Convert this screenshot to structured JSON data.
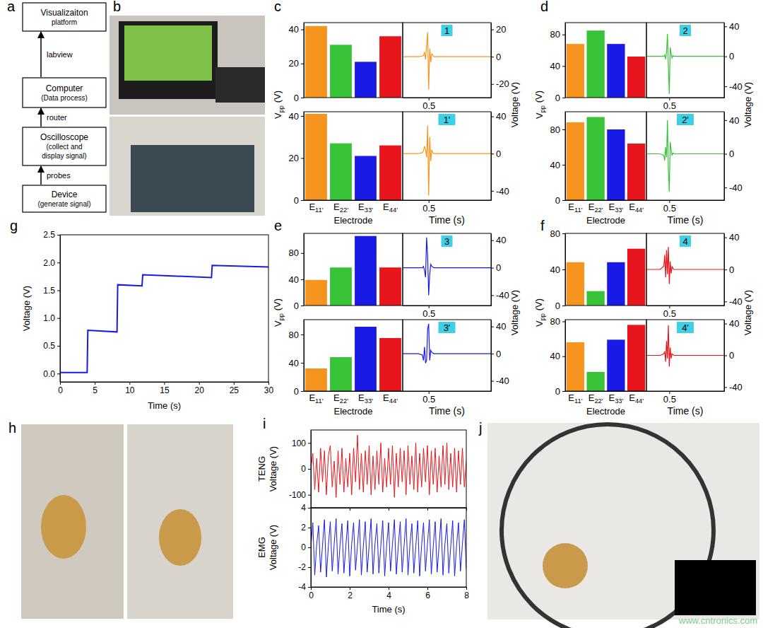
{
  "panel_labels": [
    "a",
    "b",
    "c",
    "d",
    "e",
    "f",
    "g",
    "h",
    "i",
    "j"
  ],
  "watermark": "www.cntronics.com",
  "diagram": {
    "nodes": [
      {
        "lines": [
          "Visualizaiton",
          "platform"
        ]
      },
      {
        "lines": [
          "Computer",
          "(Data process)"
        ]
      },
      {
        "lines": [
          "Oscilloscope",
          "(collect and",
          "display signal)"
        ]
      },
      {
        "lines": [
          "Device",
          "(generate signal)"
        ]
      }
    ],
    "edges": [
      {
        "label": "labview"
      },
      {
        "label": "router"
      },
      {
        "label": "probes"
      }
    ]
  },
  "chart_data": [
    {
      "type": "bar",
      "title": "1",
      "categories": [
        "E11'",
        "E22'",
        "E33'",
        "E44'"
      ],
      "values": [
        42,
        31,
        21,
        36
      ],
      "colors": [
        "#f7941d",
        "#39c339",
        "#1a1ae6",
        "#e8161c"
      ],
      "ylim": [
        0,
        44
      ],
      "yticks": [
        0,
        20,
        40
      ],
      "tick_labels": "y",
      "y_label": "Vpp (V)"
    },
    {
      "type": "line",
      "x": [
        0,
        0.1,
        0.2,
        0.3,
        0.38,
        0.4,
        0.42,
        0.44,
        0.46,
        0.48,
        0.5,
        0.52,
        0.54,
        0.56,
        0.58,
        0.6,
        0.62,
        0.65,
        0.7,
        0.8,
        0.9,
        1,
        1.2,
        1.4,
        1.7
      ],
      "values": [
        0,
        0,
        0,
        0,
        0.5,
        1,
        3,
        -2,
        8,
        18,
        -24,
        6,
        -4,
        2,
        1,
        0,
        0,
        0,
        0,
        0,
        0,
        0,
        0,
        0,
        0
      ],
      "color": "#f7941d",
      "xlim": [
        0,
        1.7
      ],
      "xticks": [
        0.5
      ],
      "ylim": [
        -30,
        25
      ],
      "yticks": [
        -20,
        0,
        20
      ],
      "y_label": "Voltage (V)"
    },
    {
      "type": "bar",
      "title": "1'",
      "categories": [
        "E11'",
        "E22'",
        "E33'",
        "E44'"
      ],
      "values": [
        41,
        27,
        21,
        26
      ],
      "colors": [
        "#f7941d",
        "#39c339",
        "#1a1ae6",
        "#e8161c"
      ],
      "ylim": [
        0,
        42
      ],
      "yticks": [
        0,
        20,
        40
      ],
      "x_label": "Electrode"
    },
    {
      "type": "line",
      "x": [
        0,
        0.1,
        0.2,
        0.3,
        0.38,
        0.4,
        0.42,
        0.44,
        0.46,
        0.48,
        0.5,
        0.52,
        0.54,
        0.56,
        0.58,
        0.6,
        0.62,
        0.65,
        0.7,
        0.8,
        0.9,
        1,
        1.2,
        1.4,
        1.7
      ],
      "values": [
        0,
        0,
        0,
        0,
        1,
        3,
        8,
        4,
        -4,
        30,
        -45,
        18,
        -8,
        4,
        1,
        0,
        0,
        0,
        0,
        0,
        0,
        0,
        0,
        0,
        0
      ],
      "color": "#f7941d",
      "xlim": [
        0,
        1.7
      ],
      "xticks": [
        0.5
      ],
      "ylim": [
        -50,
        45
      ],
      "yticks": [
        -40,
        0,
        40
      ],
      "x_label": "Time (s)"
    },
    {
      "type": "bar",
      "title": "2",
      "categories": [
        "E11'",
        "E22'",
        "E33'",
        "E44'"
      ],
      "values": [
        68,
        85,
        68,
        52
      ],
      "colors": [
        "#f7941d",
        "#39c339",
        "#1a1ae6",
        "#e8161c"
      ],
      "ylim": [
        0,
        95
      ],
      "yticks": [
        0,
        40,
        80
      ],
      "tick_labels": "y",
      "y_label": "Vpp (V)"
    },
    {
      "type": "line",
      "x": [
        0,
        0.1,
        0.2,
        0.3,
        0.38,
        0.4,
        0.42,
        0.44,
        0.46,
        0.48,
        0.5,
        0.52,
        0.54,
        0.56,
        0.58,
        0.6,
        0.62,
        0.65,
        0.7,
        0.8,
        0.9,
        1,
        1.2,
        1.4,
        1.7
      ],
      "values": [
        0,
        0,
        0,
        0,
        0,
        2,
        -4,
        6,
        30,
        -12,
        -50,
        12,
        4,
        -2,
        1,
        0,
        0,
        0,
        0,
        0,
        0,
        0,
        0,
        0,
        0
      ],
      "color": "#39c339",
      "xlim": [
        0,
        1.7
      ],
      "xticks": [
        0.5
      ],
      "ylim": [
        -55,
        45
      ],
      "yticks": [
        -40,
        0,
        40
      ],
      "y_label": "Voltage (V)"
    },
    {
      "type": "bar",
      "title": "2'",
      "categories": [
        "E11'",
        "E22'",
        "E33'",
        "E44'"
      ],
      "values": [
        88,
        94,
        80,
        64
      ],
      "colors": [
        "#f7941d",
        "#39c339",
        "#1a1ae6",
        "#e8161c"
      ],
      "ylim": [
        0,
        100
      ],
      "yticks": [
        0,
        40,
        80
      ],
      "x_label": "Electrode"
    },
    {
      "type": "line",
      "x": [
        0,
        0.1,
        0.2,
        0.3,
        0.38,
        0.4,
        0.42,
        0.44,
        0.46,
        0.48,
        0.5,
        0.52,
        0.54,
        0.56,
        0.58,
        0.6,
        0.62,
        0.65,
        0.7,
        0.8,
        0.9,
        1,
        1.2,
        1.4,
        1.7
      ],
      "values": [
        0,
        0,
        0,
        0,
        -2,
        -8,
        8,
        -4,
        40,
        -18,
        -45,
        14,
        5,
        -2,
        1,
        0,
        0,
        0,
        0,
        0,
        0,
        0,
        0,
        0,
        0
      ],
      "color": "#39c339",
      "xlim": [
        0,
        1.7
      ],
      "xticks": [
        0.5
      ],
      "ylim": [
        -55,
        50
      ],
      "yticks": [
        -40,
        0,
        40
      ],
      "x_label": "Time (s)"
    },
    {
      "type": "bar",
      "title": "3",
      "categories": [
        "E11'",
        "E22'",
        "E33'",
        "E44'"
      ],
      "values": [
        39,
        58,
        106,
        58
      ],
      "colors": [
        "#f7941d",
        "#39c339",
        "#1a1ae6",
        "#e8161c"
      ],
      "ylim": [
        0,
        110
      ],
      "yticks": [
        0,
        40,
        80
      ],
      "tick_labels": "y",
      "y_label": "Vpp (V)"
    },
    {
      "type": "line",
      "x": [
        0,
        0.1,
        0.2,
        0.3,
        0.38,
        0.4,
        0.42,
        0.44,
        0.46,
        0.48,
        0.5,
        0.52,
        0.54,
        0.56,
        0.58,
        0.6,
        0.62,
        0.65,
        0.7,
        0.8,
        0.9,
        1,
        1.2,
        1.4,
        1.7
      ],
      "values": [
        0,
        0,
        0,
        0,
        0,
        2,
        -4,
        -14,
        44,
        18,
        -40,
        -10,
        5,
        2,
        1,
        0,
        0,
        0,
        0,
        0,
        0,
        0,
        0,
        0,
        0
      ],
      "color": "#1a1ae6",
      "xlim": [
        0,
        1.7
      ],
      "xticks": [
        0.5
      ],
      "ylim": [
        -55,
        50
      ],
      "yticks": [
        -40,
        0,
        40
      ],
      "y_label": "Voltage (V)"
    },
    {
      "type": "bar",
      "title": "3'",
      "categories": [
        "E11'",
        "E22'",
        "E33'",
        "E44'"
      ],
      "values": [
        32,
        48,
        91,
        75
      ],
      "colors": [
        "#f7941d",
        "#39c339",
        "#1a1ae6",
        "#e8161c"
      ],
      "ylim": [
        0,
        101
      ],
      "yticks": [
        0,
        40,
        80
      ],
      "x_label": "Electrode"
    },
    {
      "type": "line",
      "x": [
        0,
        0.1,
        0.2,
        0.3,
        0.38,
        0.4,
        0.42,
        0.44,
        0.46,
        0.48,
        0.5,
        0.52,
        0.54,
        0.56,
        0.58,
        0.6,
        0.62,
        0.65,
        0.7,
        0.8,
        0.9,
        1,
        1.2,
        1.4,
        1.7
      ],
      "values": [
        0,
        0,
        0,
        0,
        -2,
        -10,
        10,
        -14,
        -10,
        36,
        44,
        -10,
        5,
        2,
        1,
        0,
        0,
        0,
        0,
        0,
        0,
        0,
        0,
        0,
        0
      ],
      "color": "#1a1ae6",
      "xlim": [
        0,
        1.7
      ],
      "xticks": [
        0.5
      ],
      "ylim": [
        -55,
        50
      ],
      "yticks": [
        -40,
        0,
        40
      ],
      "x_label": "Time (s)"
    },
    {
      "type": "bar",
      "title": "4",
      "categories": [
        "E11'",
        "E22'",
        "E33'",
        "E44'"
      ],
      "values": [
        48,
        16,
        48,
        63
      ],
      "colors": [
        "#f7941d",
        "#39c339",
        "#1a1ae6",
        "#e8161c"
      ],
      "ylim": [
        0,
        80
      ],
      "yticks": [
        0,
        40,
        80
      ],
      "tick_labels": "y",
      "y_label": "Vpp (V)"
    },
    {
      "type": "line",
      "x": [
        0,
        0.1,
        0.2,
        0.3,
        0.38,
        0.4,
        0.42,
        0.44,
        0.46,
        0.48,
        0.5,
        0.52,
        0.54,
        0.56,
        0.58,
        0.6,
        0.62,
        0.65,
        0.7,
        0.8,
        0.9,
        1,
        1.2,
        1.4,
        1.7
      ],
      "values": [
        0,
        0,
        0,
        0,
        4,
        18,
        -10,
        24,
        -6,
        28,
        -18,
        10,
        -5,
        4,
        1,
        0,
        0,
        0,
        0,
        0,
        0,
        0,
        0,
        0,
        0
      ],
      "color": "#e8161c",
      "xlim": [
        0,
        1.7
      ],
      "xticks": [
        0.5
      ],
      "ylim": [
        -45,
        45
      ],
      "yticks": [
        -40,
        0,
        40
      ],
      "y_label": "Voltage (V)"
    },
    {
      "type": "bar",
      "title": "4'",
      "categories": [
        "E11'",
        "E22'",
        "E33'",
        "E44'"
      ],
      "values": [
        56,
        22,
        59,
        76
      ],
      "colors": [
        "#f7941d",
        "#39c339",
        "#1a1ae6",
        "#e8161c"
      ],
      "ylim": [
        0,
        82
      ],
      "yticks": [
        0,
        40,
        80
      ],
      "x_label": "Electrode"
    },
    {
      "type": "line",
      "x": [
        0,
        0.1,
        0.2,
        0.3,
        0.38,
        0.4,
        0.42,
        0.44,
        0.46,
        0.48,
        0.5,
        0.52,
        0.54,
        0.56,
        0.58,
        0.6,
        0.62,
        0.65,
        0.7,
        0.8,
        0.9,
        1,
        1.2,
        1.4,
        1.7
      ],
      "values": [
        0,
        0,
        0,
        0,
        2,
        5,
        -8,
        18,
        -4,
        38,
        -14,
        10,
        -4,
        2,
        1,
        0,
        0,
        0,
        0,
        0,
        0,
        0,
        0,
        0,
        0
      ],
      "color": "#e8161c",
      "xlim": [
        0,
        1.7
      ],
      "xticks": [
        0.5
      ],
      "ylim": [
        -45,
        45
      ],
      "yticks": [
        -40,
        0,
        40
      ],
      "x_label": "Time (s)"
    },
    {
      "type": "line",
      "x": [
        0,
        3.9,
        4.0,
        8.2,
        8.3,
        11.8,
        11.9,
        21.8,
        21.9,
        30
      ],
      "values": [
        0.02,
        0.02,
        0.78,
        0.75,
        1.6,
        1.58,
        1.78,
        1.73,
        1.95,
        1.92
      ],
      "color": "#1a1ae6",
      "xlim": [
        0,
        30
      ],
      "xticks": [
        0,
        5,
        10,
        15,
        20,
        25,
        30
      ],
      "ylim": [
        -0.15,
        2.5
      ],
      "yticks": [
        {
          "value": 0,
          "label": "0.0"
        },
        {
          "value": 0.5,
          "label": "0.5"
        },
        {
          "value": 1,
          "label": "1.0"
        },
        {
          "value": 1.5,
          "label": "1.5"
        },
        {
          "value": 2,
          "label": "2.0"
        },
        {
          "value": 2.5,
          "label": "2.5"
        }
      ],
      "x_label": "Time (s)",
      "y_label": [
        "Voltage (V)"
      ]
    },
    {
      "type": "line",
      "x": [
        0,
        0.1,
        0.2,
        0.3,
        0.4,
        0.5,
        0.6,
        0.7,
        0.8,
        0.9,
        1,
        1.1,
        1.2,
        1.3,
        1.4,
        1.5,
        1.6,
        1.7,
        1.8,
        1.9,
        2,
        2.1,
        2.2,
        2.3,
        2.4,
        2.5,
        2.6,
        2.7,
        2.8,
        2.9,
        3,
        3.1,
        3.2,
        3.3,
        3.4,
        3.5,
        3.6,
        3.7,
        3.8,
        3.9,
        4,
        4.1,
        4.2,
        4.3,
        4.4,
        4.5,
        4.6,
        4.7,
        4.8,
        4.9,
        5,
        5.1,
        5.2,
        5.3,
        5.4,
        5.5,
        5.6,
        5.7,
        5.8,
        5.9,
        6,
        6.1,
        6.2,
        6.3,
        6.4,
        6.5,
        6.6,
        6.7,
        6.8,
        6.9,
        7,
        7.1,
        7.2,
        7.3,
        7.4,
        7.5,
        7.6,
        7.7,
        7.8,
        7.9,
        8
      ],
      "values": [
        0,
        60,
        -80,
        40,
        -90,
        80,
        -50,
        70,
        -100,
        50,
        90,
        -70,
        30,
        -110,
        70,
        -60,
        80,
        -90,
        40,
        -70,
        60,
        -100,
        80,
        -50,
        130,
        -80,
        60,
        -90,
        70,
        -60,
        90,
        -100,
        50,
        -80,
        70,
        -60,
        100,
        -90,
        40,
        -70,
        80,
        -60,
        90,
        -110,
        60,
        -70,
        80,
        -50,
        70,
        -100,
        90,
        -60,
        50,
        -80,
        100,
        -90,
        60,
        -70,
        80,
        -50,
        90,
        -100,
        70,
        -60,
        80,
        -90,
        50,
        -70,
        90,
        -60,
        100,
        -80,
        60,
        -70,
        80,
        -90,
        70,
        -60,
        80,
        -70,
        30
      ],
      "color": "#e8161c",
      "xlim": [
        0,
        8
      ],
      "xticks": [
        0,
        2,
        4,
        6,
        8
      ],
      "ylim": [
        -150,
        150
      ],
      "yticks": [
        -100,
        0,
        100
      ],
      "tick_labels": "y",
      "y_label": [
        "TENG",
        "Voltage (V)"
      ]
    },
    {
      "type": "line",
      "x": [
        0,
        0.1,
        0.2,
        0.3,
        0.4,
        0.5,
        0.6,
        0.7,
        0.8,
        0.9,
        1,
        1.1,
        1.2,
        1.3,
        1.4,
        1.5,
        1.6,
        1.7,
        1.8,
        1.9,
        2,
        2.1,
        2.2,
        2.3,
        2.4,
        2.5,
        2.6,
        2.7,
        2.8,
        2.9,
        3,
        3.1,
        3.2,
        3.3,
        3.4,
        3.5,
        3.6,
        3.7,
        3.8,
        3.9,
        4,
        4.1,
        4.2,
        4.3,
        4.4,
        4.5,
        4.6,
        4.7,
        4.8,
        4.9,
        5,
        5.1,
        5.2,
        5.3,
        5.4,
        5.5,
        5.6,
        5.7,
        5.8,
        5.9,
        6,
        6.1,
        6.2,
        6.3,
        6.4,
        6.5,
        6.6,
        6.7,
        6.8,
        6.9,
        7,
        7.1,
        7.2,
        7.3,
        7.4,
        7.5,
        7.6,
        7.7,
        7.8,
        7.9,
        8
      ],
      "values": [
        0,
        2.5,
        -2.8,
        0.3,
        2.2,
        -2.5,
        0.2,
        2.8,
        -3,
        0.1,
        2.6,
        -2.4,
        0.3,
        2.9,
        -2.7,
        0.2,
        2.4,
        -2.6,
        0.1,
        2.7,
        -2.9,
        0.3,
        2.5,
        -2.3,
        0.2,
        2.8,
        -2.8,
        0.1,
        2.6,
        -2.5,
        0.2,
        2.9,
        -2.7,
        0.3,
        2.4,
        -2.6,
        0.1,
        2.7,
        -2.9,
        0.2,
        2.5,
        -2.4,
        0.3,
        2.8,
        -2.7,
        0.1,
        2.6,
        -2.5,
        0.2,
        2.9,
        -2.8,
        0.3,
        2.4,
        -2.6,
        0.1,
        2.7,
        -2.9,
        0.2,
        2.5,
        -2.4,
        0.3,
        2.8,
        -2.7,
        0.1,
        2.6,
        -2.5,
        0.2,
        2.9,
        -2.8,
        0.3,
        2.4,
        -2.6,
        0.1,
        2.7,
        -2.9,
        0.2,
        2.5,
        -2.4,
        0.3,
        2.8,
        -2.2
      ],
      "color": "#1a1ae6",
      "xlim": [
        0,
        8
      ],
      "xticks": [
        0,
        2,
        4,
        6,
        8
      ],
      "ylim": [
        -4,
        4
      ],
      "yticks": [
        -4,
        -2,
        0,
        2,
        4
      ],
      "x_label": "Time (s)",
      "y_label": [
        "EMG",
        "Voltage (V)"
      ]
    }
  ]
}
